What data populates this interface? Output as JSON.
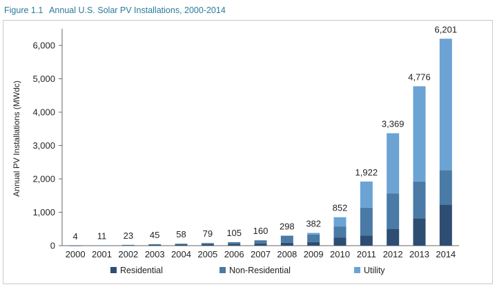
{
  "figure": {
    "number": "Figure 1.1",
    "title": "Annual U.S. Solar PV Installations, 2000-2014"
  },
  "colors": {
    "title": "#2a7a9b",
    "residential": "#2e4d72",
    "non_residential": "#4a7aa6",
    "utility": "#6ba3d4",
    "axis": "#666666",
    "frame": "#c9c9c9"
  },
  "chart_data": {
    "type": "bar",
    "stacked": true,
    "title": "Annual U.S. Solar PV Installations, 2000-2014",
    "xlabel": "",
    "ylabel": "Annual PV Installations (MWdc)",
    "ylim": [
      0,
      6500
    ],
    "yticks": [
      0,
      1000,
      2000,
      3000,
      4000,
      5000,
      6000
    ],
    "ytick_labels": [
      "0",
      "1,000",
      "2,000",
      "3,000",
      "4,000",
      "5,000",
      "6,000"
    ],
    "grid": false,
    "legend_position": "bottom",
    "categories": [
      "2000",
      "2001",
      "2002",
      "2003",
      "2004",
      "2005",
      "2006",
      "2007",
      "2008",
      "2009",
      "2010",
      "2011",
      "2012",
      "2013",
      "2014"
    ],
    "totals": [
      4,
      11,
      23,
      45,
      58,
      79,
      105,
      160,
      298,
      382,
      852,
      1922,
      3369,
      4776,
      6201
    ],
    "total_labels": [
      "4",
      "11",
      "23",
      "45",
      "58",
      "79",
      "105",
      "160",
      "298",
      "382",
      "852",
      "1,922",
      "3,369",
      "4,776",
      "6,201"
    ],
    "series": [
      {
        "name": "Residential",
        "values": [
          3,
          8,
          15,
          28,
          38,
          45,
          55,
          65,
          85,
          110,
          245,
          300,
          495,
          820,
          1230
        ]
      },
      {
        "name": "Non-Residential",
        "values": [
          1,
          3,
          8,
          17,
          20,
          34,
          50,
          95,
          213,
          222,
          330,
          840,
          1070,
          1100,
          1030
        ]
      },
      {
        "name": "Utility",
        "values": [
          0,
          0,
          0,
          0,
          0,
          0,
          0,
          0,
          0,
          50,
          277,
          782,
          1804,
          2856,
          3941
        ]
      }
    ]
  }
}
